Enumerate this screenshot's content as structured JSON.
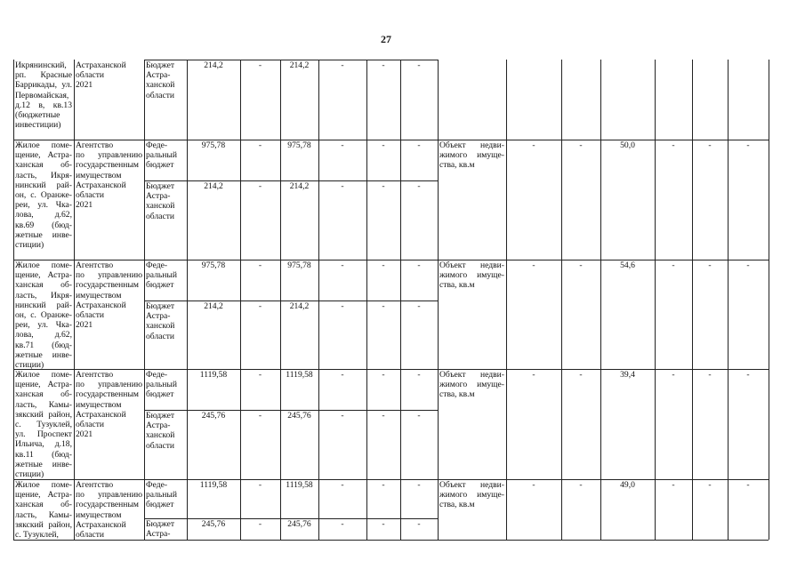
{
  "page_number": "27",
  "blocks": [
    {
      "object_lines": [
        "Икрянинский,",
        "рп. Красные",
        "Баррикады, ул.",
        "Первомайская,",
        "д.12 в, кв.13",
        "(бюджетные",
        "инвестиции)"
      ],
      "agency_lines": [
        "Астраханской",
        "области",
        "2021"
      ],
      "funding": [
        {
          "source_lines": [
            "Бюджет",
            "Астра-",
            "ханской",
            "области"
          ],
          "values": [
            "214,2",
            "-",
            "214,2",
            "-",
            "-",
            "-"
          ]
        }
      ],
      "indicator_lines": [],
      "indicator_values": []
    },
    {
      "object_lines": [
        "Жилое поме-",
        "щение, Астра-",
        "ханская об-",
        "ласть, Икря-",
        "нинский рай-",
        "он, с. Оранже-",
        "реи, ул. Чка-",
        "лова, д.62,",
        "кв.69 (бюд-",
        "жетные инве-",
        "стиции)"
      ],
      "agency_lines": [
        "Агентство",
        "по управлению",
        "государственным",
        "имуществом",
        "Астраханской",
        "области",
        "2021"
      ],
      "funding": [
        {
          "source_lines": [
            "Феде-",
            "ральный",
            "бюджет"
          ],
          "values": [
            "975,78",
            "-",
            "975,78",
            "-",
            "-",
            "-"
          ]
        },
        {
          "source_lines": [
            "Бюджет",
            "Астра-",
            "ханской",
            "области"
          ],
          "values": [
            "214,2",
            "-",
            "214,2",
            "-",
            "-",
            "-"
          ]
        }
      ],
      "indicator_lines": [
        "Объект недви-",
        "жимого имуще-",
        "ства, кв.м"
      ],
      "indicator_values": [
        "-",
        "-",
        "50,0",
        "-",
        "-",
        "-"
      ]
    },
    {
      "object_lines": [
        "Жилое поме-",
        "щение, Астра-",
        "ханская об-",
        "ласть, Икря-",
        "нинский рай-",
        "он, с. Оранже-",
        "реи, ул. Чка-",
        "лова, д.62,",
        "кв.71 (бюд-",
        "жетные инве-",
        "стиции)"
      ],
      "agency_lines": [
        "Агентство",
        "по управлению",
        "государственным",
        "имуществом",
        "Астраханской",
        "области",
        "2021"
      ],
      "funding": [
        {
          "source_lines": [
            "Феде-",
            "ральный",
            "бюджет"
          ],
          "values": [
            "975,78",
            "-",
            "975,78",
            "-",
            "-",
            "-"
          ]
        },
        {
          "source_lines": [
            "Бюджет",
            "Астра-",
            "ханской",
            "области"
          ],
          "values": [
            "214,2",
            "-",
            "214,2",
            "-",
            "-",
            "-"
          ]
        }
      ],
      "indicator_lines": [
        "Объект недви-",
        "жимого имуще-",
        "ства, кв.м"
      ],
      "indicator_values": [
        "-",
        "-",
        "54,6",
        "-",
        "-",
        "-"
      ]
    },
    {
      "object_lines": [
        "Жилое поме-",
        "щение, Астра-",
        "ханская об-",
        "ласть, Камы-",
        "зякский район,",
        "с. Тузуклей,",
        "ул. Проспект",
        "Ильича, д.18,",
        "кв.11 (бюд-",
        "жетные инве-",
        "стиции)"
      ],
      "agency_lines": [
        "Агентство",
        "по управлению",
        "государственным",
        "имуществом",
        "Астраханской",
        "области",
        "2021"
      ],
      "funding": [
        {
          "source_lines": [
            "Феде-",
            "ральный",
            "бюджет"
          ],
          "values": [
            "1119,58",
            "-",
            "1119,58",
            "-",
            "-",
            "-"
          ]
        },
        {
          "source_lines": [
            "Бюджет",
            "Астра-",
            "ханской",
            "области"
          ],
          "values": [
            "245,76",
            "-",
            "245,76",
            "-",
            "-",
            "-"
          ]
        }
      ],
      "indicator_lines": [
        "Объект недви-",
        "жимого имуще-",
        "ства, кв.м"
      ],
      "indicator_values": [
        "-",
        "-",
        "39,4",
        "-",
        "-",
        "-"
      ]
    },
    {
      "object_lines": [
        "Жилое поме-",
        "щение, Астра-",
        "ханская об-",
        "ласть, Камы-",
        "зякский район,",
        "с. Тузуклей,"
      ],
      "agency_lines": [
        "Агентство",
        "по управлению",
        "государственным",
        "имуществом",
        "Астраханской",
        "области"
      ],
      "funding": [
        {
          "source_lines": [
            "Феде-",
            "ральный",
            "бюджет"
          ],
          "values": [
            "1119,58",
            "-",
            "1119,58",
            "-",
            "-",
            "-"
          ]
        },
        {
          "source_lines": [
            "Бюджет",
            "Астра-"
          ],
          "values": [
            "245,76",
            "-",
            "245,76",
            "-",
            "-",
            "-"
          ]
        }
      ],
      "indicator_lines": [
        "Объект недви-",
        "жимого имуще-",
        "ства, кв.м"
      ],
      "indicator_values": [
        "-",
        "-",
        "49,0",
        "-",
        "-",
        "-"
      ]
    }
  ]
}
